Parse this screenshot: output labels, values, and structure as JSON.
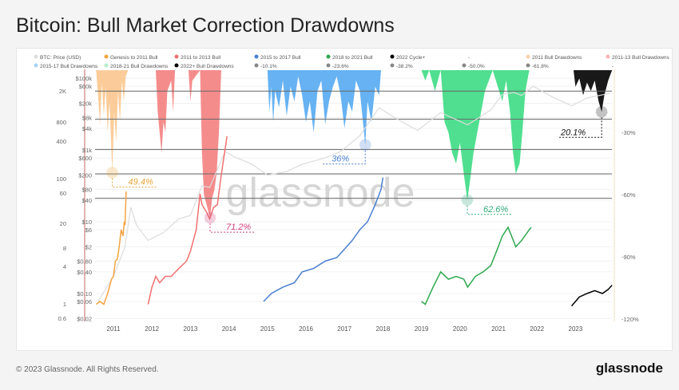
{
  "title": "Bitcoin: Bull Market Correction Drawdowns",
  "footer": "© 2023 Glassnode. All Rights Reserved.",
  "brand": "glassnode",
  "watermark": "glassnode",
  "chart_data": {
    "type": "area",
    "legend": [
      {
        "label": "BTC: Price (USD)",
        "color": "#dddddd"
      },
      {
        "label": "Genesis to 2011 Bull",
        "color": "#f4a340"
      },
      {
        "label": "2011 to 2013 Bull",
        "color": "#f07070"
      },
      {
        "label": "2015 to 2017 Bull",
        "color": "#4a7fd0"
      },
      {
        "label": "2018 to 2021 Bull",
        "color": "#2ea84f"
      },
      {
        "label": "2022 Cycle+",
        "color": "#000000"
      },
      {
        "label": "-",
        "color": "#ffffff"
      },
      {
        "label": "2011 Bull Drawdowns",
        "color": "#fbd2a8"
      },
      {
        "label": "2011-13 Bull Drawdowns",
        "color": "#f7b5b5"
      },
      {
        "label": "2015-17 Bull Drawdowns",
        "color": "#a8d4f5"
      },
      {
        "label": "2018-21 Bull Drawdowns",
        "color": "#b5ecc9"
      },
      {
        "label": "2022+ Bull Drawdowns",
        "color": "#000000"
      },
      {
        "label": "-10.1%",
        "color": "#888888"
      },
      {
        "label": "-23.6%",
        "color": "#888888"
      },
      {
        "label": "-38.2%",
        "color": "#888888"
      },
      {
        "label": "-50.0%",
        "color": "#888888"
      },
      {
        "label": "-61.8%",
        "color": "#888888"
      },
      {
        "label": "-",
        "color": "#ffffff"
      }
    ],
    "x_ticks": [
      "2011",
      "2012",
      "2013",
      "2014",
      "2015",
      "2016",
      "2017",
      "2018",
      "2019",
      "2020",
      "2021",
      "2022",
      "2023"
    ],
    "xlim": [
      2010.5,
      2024.0
    ],
    "y_price_ticks": [
      "$100k",
      "$60k",
      "$20k",
      "$8k",
      "$4k",
      "$1k",
      "$600",
      "$200",
      "$80",
      "$40",
      "$10",
      "$6",
      "$2",
      "$0.80",
      "$0.40",
      "$0.10",
      "$0.06",
      "$0.02"
    ],
    "y_price_values": [
      100000,
      60000,
      20000,
      8000,
      4000,
      1000,
      600,
      200,
      80,
      40,
      10,
      6,
      2,
      0.8,
      0.4,
      0.1,
      0.06,
      0.02
    ],
    "y_price_log": true,
    "y_outer_ticks": [
      "2K",
      "800",
      "400",
      "100",
      "60",
      "20",
      "8",
      "4",
      "1",
      "0.6"
    ],
    "y_right_ticks": [
      "-30%",
      "-60%",
      "-90%",
      "-120%"
    ],
    "y_right_values": [
      -30,
      -60,
      -90,
      -120
    ],
    "y_right_lim": [
      0,
      -120
    ],
    "fib_levels": [
      -10.1,
      -23.6,
      -38.2,
      -50.0,
      -61.8
    ],
    "btc_price": [
      [
        2010.6,
        0.06
      ],
      [
        2011.0,
        0.3
      ],
      [
        2011.3,
        2
      ],
      [
        2011.45,
        25
      ],
      [
        2011.6,
        8
      ],
      [
        2011.9,
        3
      ],
      [
        2012.3,
        5
      ],
      [
        2012.7,
        12
      ],
      [
        2013.0,
        15
      ],
      [
        2013.3,
        100
      ],
      [
        2013.5,
        90
      ],
      [
        2013.9,
        900
      ],
      [
        2014.2,
        600
      ],
      [
        2014.6,
        400
      ],
      [
        2015.0,
        200
      ],
      [
        2015.5,
        250
      ],
      [
        2015.9,
        400
      ],
      [
        2016.5,
        600
      ],
      [
        2016.9,
        900
      ],
      [
        2017.4,
        2500
      ],
      [
        2017.9,
        15000
      ],
      [
        2018.3,
        8000
      ],
      [
        2018.9,
        3500
      ],
      [
        2019.5,
        11000
      ],
      [
        2019.9,
        7000
      ],
      [
        2020.2,
        5000
      ],
      [
        2020.8,
        13000
      ],
      [
        2021.1,
        35000
      ],
      [
        2021.4,
        40000
      ],
      [
        2021.6,
        33000
      ],
      [
        2021.9,
        60000
      ],
      [
        2022.4,
        30000
      ],
      [
        2022.9,
        17000
      ],
      [
        2023.3,
        28000
      ],
      [
        2023.9,
        38000
      ]
    ],
    "bull_series": [
      {
        "name": "Genesis to 2011 Bull",
        "color": "#f4a340",
        "points": [
          [
            2010.55,
            0.05
          ],
          [
            2010.65,
            0.06
          ],
          [
            2010.75,
            0.05
          ],
          [
            2010.85,
            0.1
          ],
          [
            2010.95,
            0.25
          ],
          [
            2011.0,
            0.3
          ],
          [
            2011.05,
            0.8
          ],
          [
            2011.1,
            0.9
          ],
          [
            2011.15,
            2
          ],
          [
            2011.2,
            6
          ],
          [
            2011.25,
            4
          ],
          [
            2011.28,
            10
          ],
          [
            2011.3,
            8
          ],
          [
            2011.33,
            70
          ]
        ]
      },
      {
        "name": "2011 to 2013 Bull",
        "color": "#f07070",
        "points": [
          [
            2011.9,
            0.05
          ],
          [
            2012.0,
            0.15
          ],
          [
            2012.1,
            0.3
          ],
          [
            2012.2,
            0.2
          ],
          [
            2012.35,
            0.3
          ],
          [
            2012.5,
            0.3
          ],
          [
            2012.7,
            0.5
          ],
          [
            2012.9,
            0.8
          ],
          [
            2013.0,
            1.5
          ],
          [
            2013.15,
            6
          ],
          [
            2013.25,
            60
          ],
          [
            2013.3,
            30
          ],
          [
            2013.4,
            20
          ],
          [
            2013.5,
            12
          ],
          [
            2013.6,
            25
          ],
          [
            2013.7,
            30
          ],
          [
            2013.8,
            200
          ],
          [
            2013.95,
            2400
          ]
        ]
      },
      {
        "name": "2015 to 2017 Bull",
        "color": "#4a7fd0",
        "points": [
          [
            2014.9,
            0.06
          ],
          [
            2015.1,
            0.1
          ],
          [
            2015.4,
            0.15
          ],
          [
            2015.7,
            0.2
          ],
          [
            2015.9,
            0.4
          ],
          [
            2016.2,
            0.5
          ],
          [
            2016.5,
            0.8
          ],
          [
            2016.8,
            1
          ],
          [
            2016.95,
            1.5
          ],
          [
            2017.2,
            3
          ],
          [
            2017.4,
            6
          ],
          [
            2017.6,
            10
          ],
          [
            2017.8,
            30
          ],
          [
            2017.95,
            80
          ],
          [
            2018.0,
            170
          ]
        ]
      },
      {
        "name": "2018 to 2021 Bull",
        "color": "#2ea84f",
        "points": [
          [
            2019.0,
            0.06
          ],
          [
            2019.1,
            0.05
          ],
          [
            2019.3,
            0.15
          ],
          [
            2019.5,
            0.4
          ],
          [
            2019.7,
            0.25
          ],
          [
            2019.9,
            0.3
          ],
          [
            2020.1,
            0.25
          ],
          [
            2020.2,
            0.15
          ],
          [
            2020.4,
            0.3
          ],
          [
            2020.6,
            0.4
          ],
          [
            2020.8,
            0.6
          ],
          [
            2020.95,
            1.5
          ],
          [
            2021.1,
            4
          ],
          [
            2021.25,
            7
          ],
          [
            2021.45,
            2
          ],
          [
            2021.6,
            3
          ],
          [
            2021.8,
            6
          ],
          [
            2021.85,
            7
          ]
        ]
      },
      {
        "name": "2022 Cycle+",
        "color": "#000000",
        "points": [
          [
            2022.9,
            0.045
          ],
          [
            2023.0,
            0.06
          ],
          [
            2023.1,
            0.08
          ],
          [
            2023.3,
            0.1
          ],
          [
            2023.5,
            0.12
          ],
          [
            2023.7,
            0.1
          ],
          [
            2023.85,
            0.13
          ],
          [
            2023.95,
            0.17
          ]
        ]
      }
    ],
    "drawdown_series": [
      {
        "name": "2011 Bull Drawdowns",
        "color": "#fbc68e",
        "points": [
          [
            2010.55,
            0
          ],
          [
            2010.6,
            12
          ],
          [
            2010.65,
            26
          ],
          [
            2010.7,
            6
          ],
          [
            2010.75,
            22
          ],
          [
            2010.8,
            8
          ],
          [
            2010.85,
            30
          ],
          [
            2010.9,
            15
          ],
          [
            2010.97,
            49.4
          ],
          [
            2011.02,
            20
          ],
          [
            2011.07,
            35
          ],
          [
            2011.12,
            10
          ],
          [
            2011.17,
            25
          ],
          [
            2011.22,
            5
          ],
          [
            2011.27,
            15
          ],
          [
            2011.32,
            3
          ],
          [
            2011.38,
            0
          ]
        ]
      },
      {
        "name": "2011-13 Bull Drawdowns",
        "color": "#f47f7f",
        "points": [
          [
            2012.1,
            0
          ],
          [
            2012.15,
            20
          ],
          [
            2012.2,
            30
          ],
          [
            2012.25,
            40
          ],
          [
            2012.3,
            25
          ],
          [
            2012.35,
            30
          ],
          [
            2012.4,
            10
          ],
          [
            2012.5,
            5
          ],
          [
            2012.55,
            20
          ],
          [
            2012.6,
            0
          ],
          [
            2012.95,
            0
          ],
          [
            2013.0,
            15
          ],
          [
            2013.05,
            5
          ],
          [
            2013.25,
            0
          ],
          [
            2013.3,
            40
          ],
          [
            2013.35,
            60
          ],
          [
            2013.42,
            65
          ],
          [
            2013.51,
            71.2
          ],
          [
            2013.56,
            62
          ],
          [
            2013.62,
            58
          ],
          [
            2013.68,
            50
          ],
          [
            2013.74,
            30
          ],
          [
            2013.8,
            0
          ]
        ]
      },
      {
        "name": "2015-17 Bull Drawdowns",
        "color": "#55aaf2",
        "points": [
          [
            2015.0,
            0
          ],
          [
            2015.05,
            20
          ],
          [
            2015.1,
            8
          ],
          [
            2015.15,
            25
          ],
          [
            2015.2,
            10
          ],
          [
            2015.3,
            18
          ],
          [
            2015.4,
            5
          ],
          [
            2015.5,
            22
          ],
          [
            2015.6,
            8
          ],
          [
            2015.7,
            15
          ],
          [
            2015.8,
            3
          ],
          [
            2015.9,
            12
          ],
          [
            2016.0,
            25
          ],
          [
            2016.1,
            15
          ],
          [
            2016.2,
            30
          ],
          [
            2016.3,
            10
          ],
          [
            2016.4,
            5
          ],
          [
            2016.5,
            26
          ],
          [
            2016.6,
            15
          ],
          [
            2016.7,
            8
          ],
          [
            2016.8,
            3
          ],
          [
            2016.9,
            12
          ],
          [
            2017.0,
            28
          ],
          [
            2017.1,
            15
          ],
          [
            2017.2,
            20
          ],
          [
            2017.3,
            5
          ],
          [
            2017.4,
            10
          ],
          [
            2017.54,
            36
          ],
          [
            2017.6,
            15
          ],
          [
            2017.7,
            25
          ],
          [
            2017.8,
            8
          ],
          [
            2017.9,
            12
          ],
          [
            2017.95,
            0
          ]
        ]
      },
      {
        "name": "2018-21 Bull Drawdowns",
        "color": "#3ddc84",
        "points": [
          [
            2019.0,
            0
          ],
          [
            2019.1,
            5
          ],
          [
            2019.2,
            0
          ],
          [
            2019.35,
            10
          ],
          [
            2019.5,
            0
          ],
          [
            2019.6,
            25
          ],
          [
            2019.7,
            30
          ],
          [
            2019.8,
            40
          ],
          [
            2019.9,
            45
          ],
          [
            2020.0,
            35
          ],
          [
            2020.1,
            50
          ],
          [
            2020.19,
            62.6
          ],
          [
            2020.25,
            55
          ],
          [
            2020.35,
            40
          ],
          [
            2020.45,
            30
          ],
          [
            2020.55,
            20
          ],
          [
            2020.65,
            10
          ],
          [
            2020.75,
            5
          ],
          [
            2020.85,
            0
          ],
          [
            2021.1,
            15
          ],
          [
            2021.2,
            5
          ],
          [
            2021.3,
            20
          ],
          [
            2021.38,
            40
          ],
          [
            2021.45,
            50
          ],
          [
            2021.55,
            45
          ],
          [
            2021.62,
            30
          ],
          [
            2021.7,
            10
          ],
          [
            2021.8,
            0
          ]
        ]
      },
      {
        "name": "2022+ Bull Drawdowns",
        "color": "#000000",
        "points": [
          [
            2022.95,
            0
          ],
          [
            2023.0,
            8
          ],
          [
            2023.1,
            4
          ],
          [
            2023.2,
            12
          ],
          [
            2023.3,
            6
          ],
          [
            2023.4,
            10
          ],
          [
            2023.5,
            5
          ],
          [
            2023.6,
            15
          ],
          [
            2023.68,
            20.1
          ],
          [
            2023.75,
            12
          ],
          [
            2023.85,
            5
          ],
          [
            2023.95,
            0
          ]
        ]
      }
    ],
    "annotations": [
      {
        "label": "49.4%",
        "x": 2010.97,
        "dd": 49.4,
        "color": "#e8a53a"
      },
      {
        "label": "71.2%",
        "x": 2013.51,
        "dd": 71.2,
        "color": "#d0407a"
      },
      {
        "label": "36%",
        "x": 2017.54,
        "dd": 36,
        "color": "#4a7fd0"
      },
      {
        "label": "62.6%",
        "x": 2020.19,
        "dd": 62.6,
        "color": "#2ea87a"
      },
      {
        "label": "20.1%",
        "x": 2023.68,
        "dd": 20.1,
        "color": "#111111"
      }
    ]
  }
}
